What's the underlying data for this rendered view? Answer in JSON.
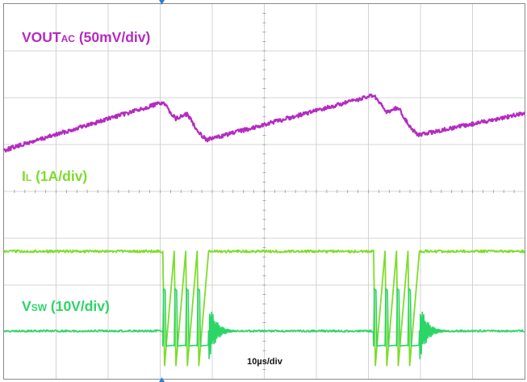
{
  "chart_data": {
    "type": "line",
    "title": "",
    "grid": true,
    "divisions": {
      "x": 10,
      "y": 8
    },
    "xlabel": "10µs/div",
    "time_per_div_us": 10,
    "series": [
      {
        "label": "VOUT",
        "label_sub": "AC",
        "label_scale": " (50mV/div)",
        "color": "#b42bc0",
        "scale": "50mV/div",
        "time_us": [
          0,
          30.5,
          33.0,
          35.2,
          37.5,
          39.0,
          71.0,
          73.5,
          75.7,
          78.0,
          79.5,
          100
        ],
        "values_div": [
          3.12,
          2.1,
          2.45,
          2.35,
          2.75,
          2.9,
          1.95,
          2.31,
          2.21,
          2.62,
          2.8,
          2.33
        ]
      },
      {
        "label": "I",
        "label_sub": "L",
        "label_scale": " (1A/div)",
        "color": "#7ddd2a",
        "scale": "1A/div",
        "baseline_div": 5.28,
        "peak_div": 5.74,
        "burst_start_us": [
          30.5,
          71.0
        ],
        "pulses_per_burst": 4,
        "pulse_period_us": 2.2
      },
      {
        "label": "V",
        "label_sub": "SW",
        "label_scale": " (10V/div)",
        "color": "#2bd566",
        "scale": "10V/div",
        "baseline_div": 6.98,
        "high_div": 6.08,
        "low_div": 7.3,
        "burst_start_us": [
          30.5,
          71.0
        ],
        "pulses_per_burst": 4,
        "pulse_period_us": 2.2
      }
    ]
  },
  "colors": {
    "grid": "#c8c8c8",
    "frame": "#8a8a8a",
    "marker": "#2c7fd6"
  }
}
